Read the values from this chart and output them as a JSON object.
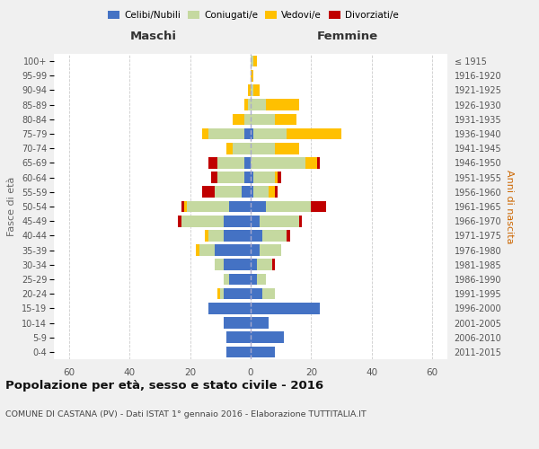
{
  "age_groups": [
    "0-4",
    "5-9",
    "10-14",
    "15-19",
    "20-24",
    "25-29",
    "30-34",
    "35-39",
    "40-44",
    "45-49",
    "50-54",
    "55-59",
    "60-64",
    "65-69",
    "70-74",
    "75-79",
    "80-84",
    "85-89",
    "90-94",
    "95-99",
    "100+"
  ],
  "birth_years": [
    "2011-2015",
    "2006-2010",
    "2001-2005",
    "1996-2000",
    "1991-1995",
    "1986-1990",
    "1981-1985",
    "1976-1980",
    "1971-1975",
    "1966-1970",
    "1961-1965",
    "1956-1960",
    "1951-1955",
    "1946-1950",
    "1941-1945",
    "1936-1940",
    "1931-1935",
    "1926-1930",
    "1921-1925",
    "1916-1920",
    "≤ 1915"
  ],
  "maschi": {
    "celibi": [
      8,
      8,
      9,
      14,
      9,
      7,
      9,
      12,
      9,
      9,
      7,
      3,
      2,
      2,
      0,
      2,
      0,
      0,
      0,
      0,
      0
    ],
    "coniugati": [
      0,
      0,
      0,
      0,
      1,
      2,
      3,
      5,
      5,
      14,
      14,
      9,
      9,
      9,
      6,
      12,
      2,
      1,
      0,
      0,
      0
    ],
    "vedovi": [
      0,
      0,
      0,
      0,
      1,
      0,
      0,
      1,
      1,
      0,
      1,
      0,
      0,
      0,
      2,
      2,
      4,
      1,
      1,
      0,
      0
    ],
    "divorziati": [
      0,
      0,
      0,
      0,
      0,
      0,
      0,
      0,
      0,
      1,
      1,
      4,
      2,
      3,
      0,
      0,
      0,
      0,
      0,
      0,
      0
    ]
  },
  "femmine": {
    "nubili": [
      8,
      11,
      6,
      23,
      4,
      2,
      2,
      3,
      4,
      3,
      5,
      1,
      1,
      0,
      0,
      1,
      0,
      0,
      0,
      0,
      0
    ],
    "coniugate": [
      0,
      0,
      0,
      0,
      4,
      3,
      5,
      7,
      8,
      13,
      15,
      5,
      7,
      18,
      8,
      11,
      8,
      5,
      1,
      0,
      1
    ],
    "vedove": [
      0,
      0,
      0,
      0,
      0,
      0,
      0,
      0,
      0,
      0,
      0,
      2,
      1,
      4,
      8,
      18,
      7,
      11,
      2,
      1,
      1
    ],
    "divorziate": [
      0,
      0,
      0,
      0,
      0,
      0,
      1,
      0,
      1,
      1,
      5,
      1,
      1,
      1,
      0,
      0,
      0,
      0,
      0,
      0,
      0
    ]
  },
  "colors": {
    "celibi": "#4472c4",
    "coniugati": "#c5d9a0",
    "vedovi": "#ffc000",
    "divorziati": "#c00000"
  },
  "xlim": 65,
  "title": "Popolazione per età, sesso e stato civile - 2016",
  "subtitle": "COMUNE DI CASTANA (PV) - Dati ISTAT 1° gennaio 2016 - Elaborazione TUTTITALIA.IT",
  "xlabel_left": "Maschi",
  "xlabel_right": "Femmine",
  "ylabel_left": "Fasce di età",
  "ylabel_right": "Anni di nascita",
  "legend_labels": [
    "Celibi/Nubili",
    "Coniugati/e",
    "Vedovi/e",
    "Divorziati/e"
  ],
  "bg_color": "#f0f0f0",
  "plot_bg": "#ffffff"
}
